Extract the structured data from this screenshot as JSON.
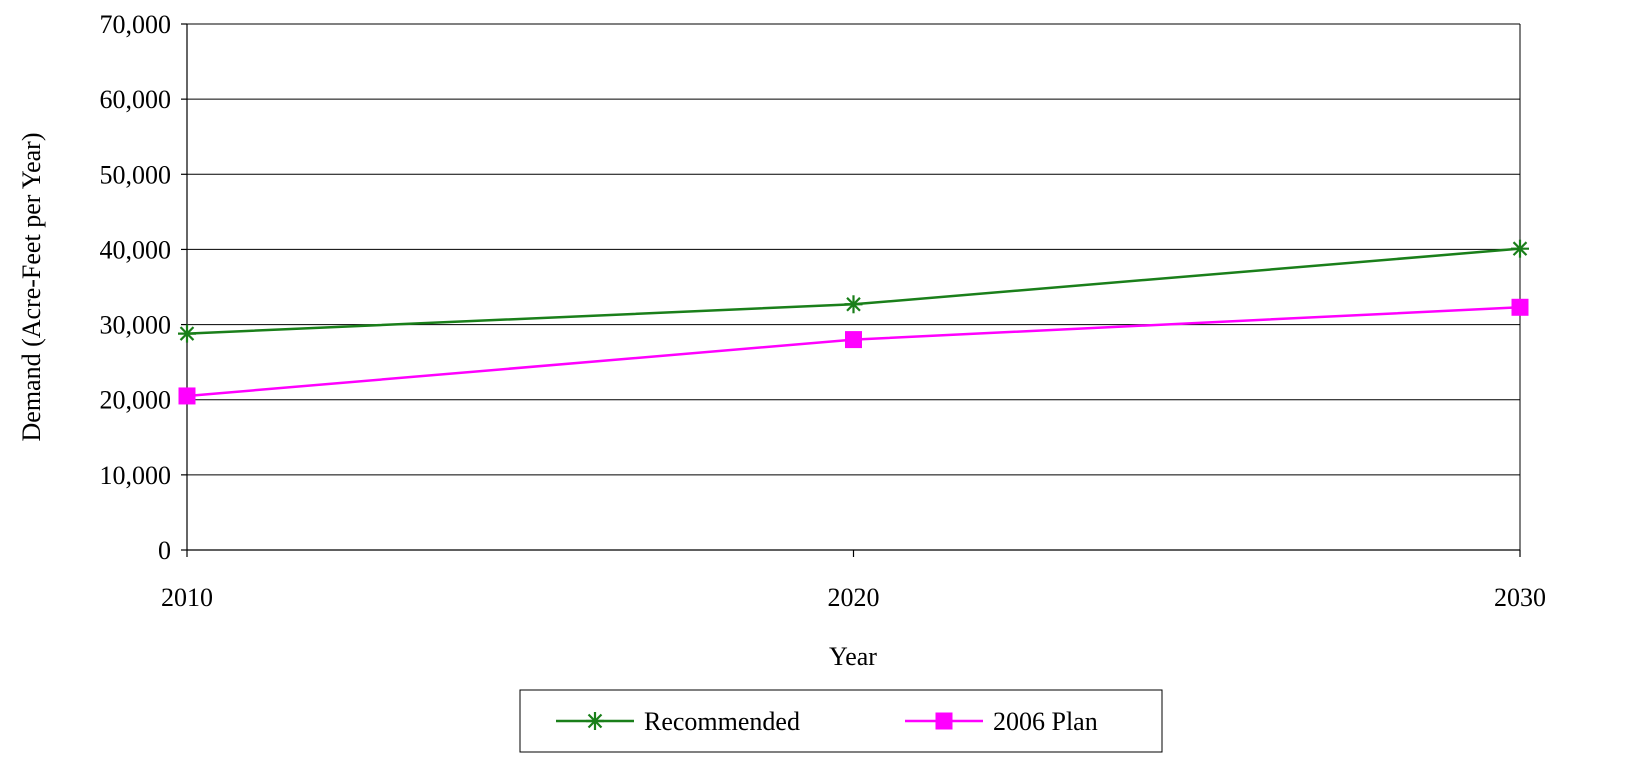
{
  "chart_data": {
    "type": "line",
    "title": "",
    "xlabel": "Year",
    "ylabel": "Demand (Acre-Feet per Year)",
    "categories": [
      "2010",
      "2020",
      "2030"
    ],
    "ylim": [
      0,
      70000
    ],
    "yticks": [
      0,
      10000,
      20000,
      30000,
      40000,
      50000,
      60000,
      70000
    ],
    "ytick_labels": [
      "0",
      "10,000",
      "20,000",
      "30,000",
      "40,000",
      "50,000",
      "60,000",
      "70,000"
    ],
    "grid": true,
    "legend_position": "bottom",
    "series": [
      {
        "name": "Recommended",
        "values": [
          28800,
          32700,
          40100
        ],
        "color": "#1a7f1a",
        "marker": "asterisk"
      },
      {
        "name": "2006 Plan",
        "values": [
          20500,
          28000,
          32300
        ],
        "color": "#ff00ff",
        "marker": "square"
      }
    ]
  }
}
